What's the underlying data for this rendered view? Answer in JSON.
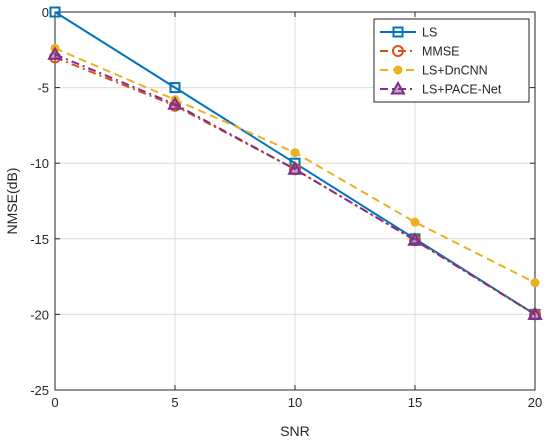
{
  "chart_data": {
    "type": "line",
    "title": "",
    "xlabel": "SNR",
    "ylabel": "NMSE(dB)",
    "xlim": [
      0,
      20
    ],
    "ylim": [
      -25,
      0
    ],
    "xticks": [
      "0",
      "5",
      "10",
      "15",
      "20"
    ],
    "yticks": [
      "0",
      "-5",
      "-10",
      "-15",
      "-20",
      "-25"
    ],
    "grid": true,
    "legend_position": "top-right",
    "x": [
      0,
      5,
      10,
      15,
      20
    ],
    "series": [
      {
        "name": "LS",
        "values": [
          0,
          -5,
          -10,
          -15,
          -20
        ],
        "color": "#0072BD",
        "dash": "solid",
        "marker": "square"
      },
      {
        "name": "MMSE",
        "values": [
          -3.0,
          -6.2,
          -10.4,
          -15.1,
          -20.0
        ],
        "color": "#D95319",
        "dash": "dashdot",
        "marker": "circle"
      },
      {
        "name": "LS+DnCNN",
        "values": [
          -2.4,
          -5.8,
          -9.3,
          -13.9,
          -17.9
        ],
        "color": "#EDB120",
        "dash": "dashed",
        "marker": "dot"
      },
      {
        "name": "LS+PACE-Net",
        "values": [
          -2.8,
          -6.1,
          -10.4,
          -15.1,
          -20.0
        ],
        "color": "#7E2F8E",
        "dash": "dashdot",
        "marker": "triangle"
      }
    ]
  }
}
